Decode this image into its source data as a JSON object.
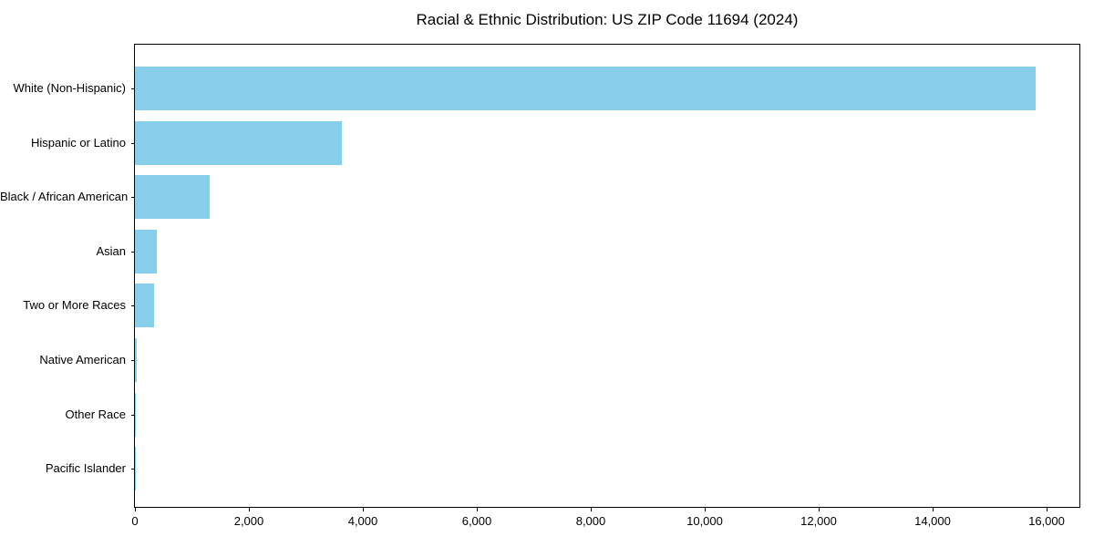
{
  "title": "Racial & Ethnic Distribution: US ZIP Code 11694 (2024)",
  "chart_data": {
    "type": "bar",
    "orientation": "horizontal",
    "title": "Racial & Ethnic Distribution: US ZIP Code 11694 (2024)",
    "xlabel": "",
    "ylabel": "",
    "categories": [
      "White (Non-Hispanic)",
      "Hispanic or Latino",
      "Black / African American",
      "Asian",
      "Two or More Races",
      "Native American",
      "Other Race",
      "Pacific Islander"
    ],
    "values": [
      15800,
      3630,
      1310,
      390,
      330,
      25,
      10,
      5
    ],
    "xlim": [
      0,
      16576
    ],
    "x_ticks": [
      0,
      2000,
      4000,
      6000,
      8000,
      10000,
      12000,
      14000,
      16000
    ],
    "x_tick_labels": [
      "0",
      "2,000",
      "4,000",
      "6,000",
      "8,000",
      "10,000",
      "12,000",
      "14,000",
      "16,000"
    ],
    "bar_color": "#87CEEB",
    "axis_color": "#000000",
    "grid": false,
    "legend": null
  }
}
